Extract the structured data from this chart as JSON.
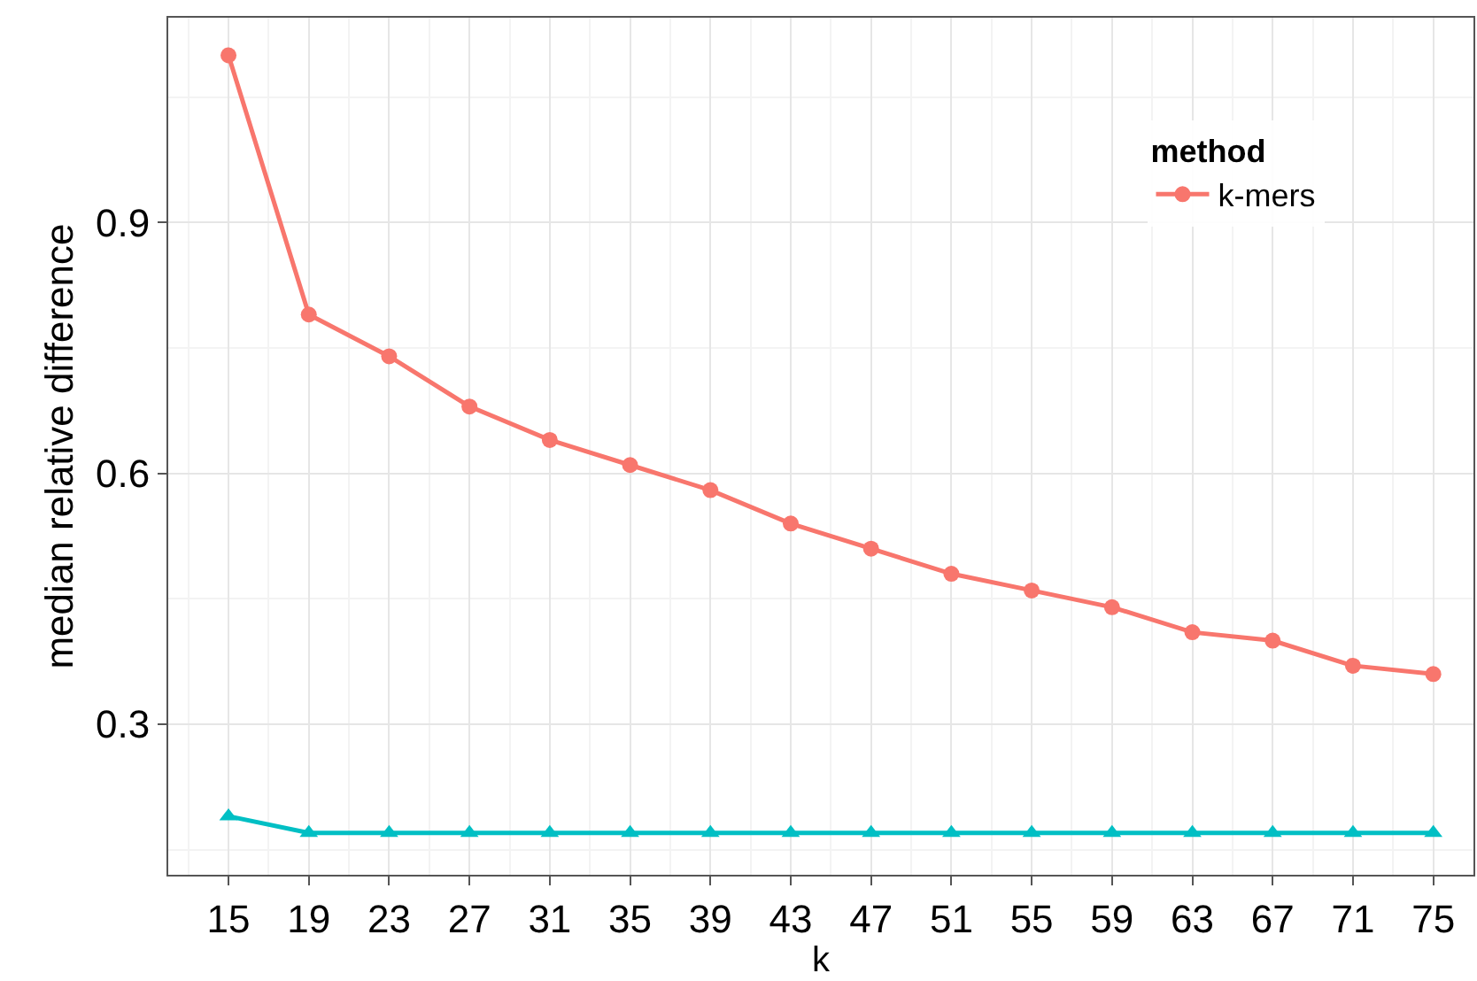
{
  "chart_data": {
    "type": "line",
    "xlabel": "k",
    "ylabel": "median relative difference",
    "legend_title": "method",
    "x": [
      15,
      19,
      23,
      27,
      31,
      35,
      39,
      43,
      47,
      51,
      55,
      59,
      63,
      67,
      71,
      75
    ],
    "series": [
      {
        "name": "k-mers",
        "color": "#f8766d",
        "marker": "circle",
        "values": [
          1.1,
          0.79,
          0.74,
          0.68,
          0.64,
          0.61,
          0.58,
          0.54,
          0.51,
          0.48,
          0.46,
          0.44,
          0.41,
          0.4,
          0.37,
          0.36
        ]
      },
      {
        "color": "#00bfc4",
        "marker": "triangle",
        "values": [
          0.19,
          0.17,
          0.17,
          0.17,
          0.17,
          0.17,
          0.17,
          0.17,
          0.17,
          0.17,
          0.17,
          0.17,
          0.17,
          0.17,
          0.17,
          0.17
        ]
      }
    ],
    "xlim": [
      12,
      77
    ],
    "xticks": [
      15,
      19,
      23,
      27,
      31,
      35,
      39,
      43,
      47,
      51,
      55,
      59,
      63,
      67,
      71,
      75
    ],
    "ylim": [
      0.12,
      1.145
    ],
    "yticks": [
      0.3,
      0.6,
      0.9
    ],
    "grid": true,
    "legend": "top right",
    "line_style": "solid"
  }
}
